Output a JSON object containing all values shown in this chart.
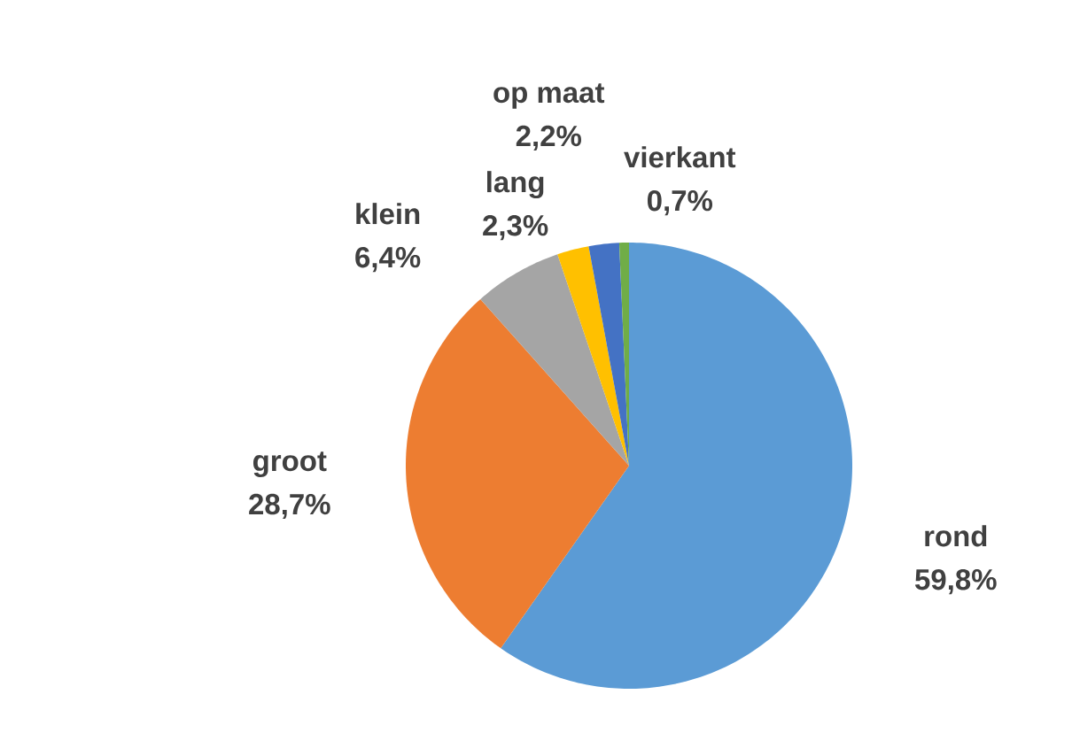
{
  "chart_data": {
    "type": "pie",
    "categories": [
      "rond",
      "groot",
      "klein",
      "lang",
      "op maat",
      "vierkant"
    ],
    "values": [
      59.8,
      28.7,
      6.4,
      2.3,
      2.2,
      0.7
    ],
    "colors": [
      "#5b9bd5",
      "#ed7d31",
      "#a5a5a5",
      "#ffc000",
      "#4472c4",
      "#70ad47"
    ],
    "value_labels": [
      "59,8%",
      "28,7%",
      "6,4%",
      "2,3%",
      "2,2%",
      "0,7%"
    ]
  }
}
